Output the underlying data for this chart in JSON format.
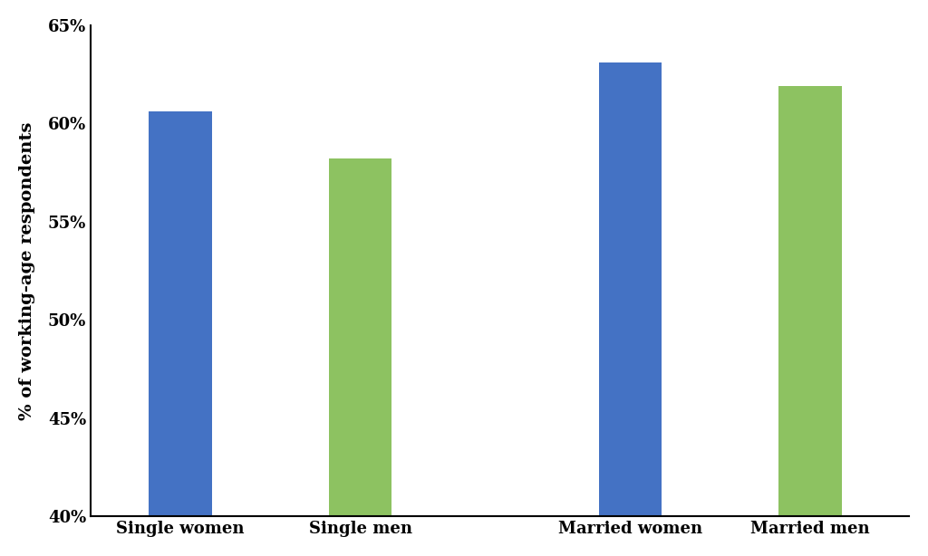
{
  "categories": [
    "Single women",
    "Single men",
    "Married women",
    "Married men"
  ],
  "values": [
    60.6,
    58.2,
    63.1,
    61.9
  ],
  "bar_colors": [
    "#4472C4",
    "#8DC261",
    "#4472C4",
    "#8DC261"
  ],
  "ylabel": "% of working-age respondents",
  "ylim": [
    40,
    65
  ],
  "yticks": [
    40,
    45,
    50,
    55,
    60,
    65
  ],
  "background_color": "#FFFFFF",
  "bar_width": 0.35,
  "ylabel_fontsize": 14,
  "tick_fontsize": 13,
  "font_family": "DejaVu Serif"
}
